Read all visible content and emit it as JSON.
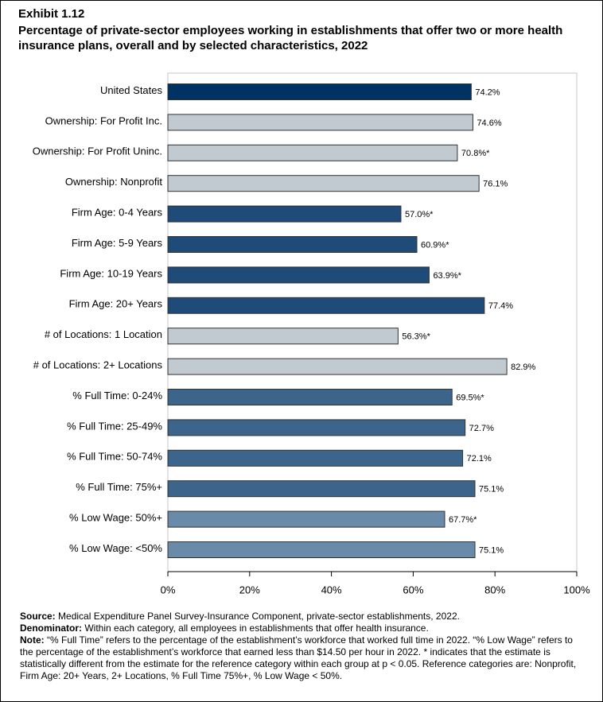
{
  "chart_data": {
    "type": "barh",
    "exhibit": "Exhibit 1.12",
    "title": "Percentage of private-sector employees working in establishments that offer two or more health insurance plans, overall and by selected characteristics, 2022",
    "categories": [
      "United States",
      "Ownership: For Profit Inc.",
      "Ownership: For Profit Uninc.",
      "Ownership: Nonprofit",
      "Firm Age: 0-4 Years",
      "Firm Age: 5-9 Years",
      "Firm Age: 10-19 Years",
      "Firm Age: 20+ Years",
      "# of Locations: 1 Location",
      "# of Locations: 2+ Locations",
      "% Full Time: 0-24%",
      "% Full Time: 25-49%",
      "% Full Time: 50-74%",
      "% Full Time: 75%+",
      "% Low Wage: 50%+",
      "% Low Wage: <50%"
    ],
    "values": [
      74.2,
      74.6,
      70.8,
      76.1,
      57.0,
      60.9,
      63.9,
      77.4,
      56.3,
      82.9,
      69.5,
      72.7,
      72.1,
      75.1,
      67.7,
      75.1
    ],
    "value_labels": [
      "74.2%",
      "74.6%",
      "70.8%*",
      "76.1%",
      "57.0%*",
      "60.9%*",
      "63.9%*",
      "77.4%",
      "56.3%*",
      "82.9%",
      "69.5%*",
      "72.7%",
      "72.1%",
      "75.1%",
      "67.7%*",
      "75.1%"
    ],
    "colors": [
      "#003264",
      "#c1c9d1",
      "#c1c9d1",
      "#c1c9d1",
      "#1f4b78",
      "#1f4b78",
      "#1f4b78",
      "#1f4b78",
      "#c1c9d1",
      "#c1c9d1",
      "#3d658b",
      "#3d658b",
      "#3d658b",
      "#3d658b",
      "#6a8aaa",
      "#6a8aaa"
    ],
    "xlim": [
      0,
      100
    ],
    "xticks": [
      {
        "value": 0,
        "label": "0%"
      },
      {
        "value": 20,
        "label": "20%"
      },
      {
        "value": 40,
        "label": "40%"
      },
      {
        "value": 60,
        "label": "60%"
      },
      {
        "value": 80,
        "label": "80%"
      },
      {
        "value": 100,
        "label": "100%"
      }
    ],
    "grid": false
  },
  "footer": [
    {
      "label": "Source:",
      "text": "Medical Expenditure Panel Survey-Insurance Component, private-sector establishments, 2022."
    },
    {
      "label": "Denominator:",
      "text": "Within each category, all employees in establishments that offer health insurance."
    },
    {
      "label": "Note:",
      "text": "“% Full Time” refers to the percentage of the establishment’s workforce that worked full time in 2022. “% Low Wage” refers to the percentage of the establishment’s workforce that earned less than $14.50 per hour in 2022. * indicates that the estimate is statistically different from the estimate for the reference category within each group at p < 0.05.  Reference categories are: Nonprofit, Firm Age: 20+ Years, 2+ Locations, % Full Time 75%+, % Low Wage < 50%."
    }
  ]
}
